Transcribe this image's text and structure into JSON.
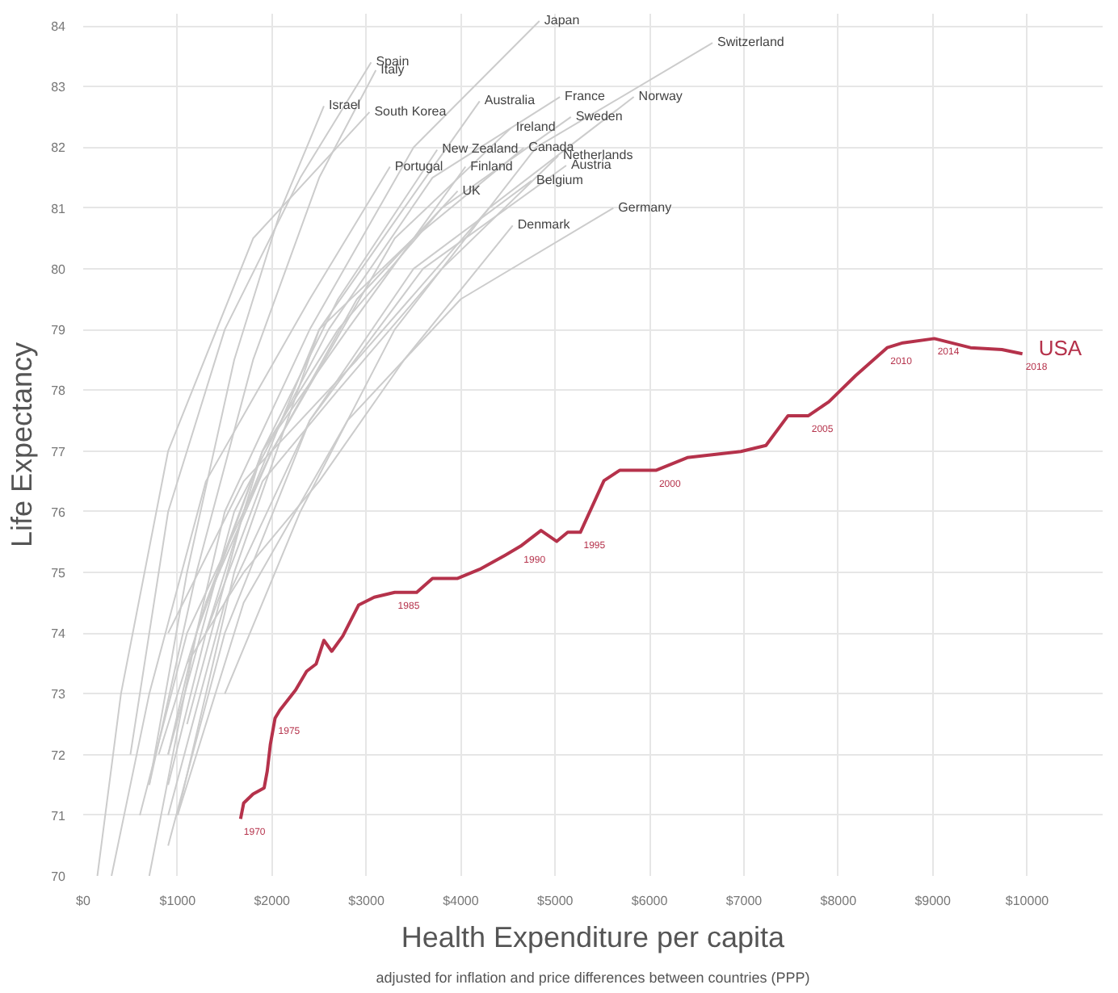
{
  "chart_data": {
    "type": "line",
    "xlabel": "Health Expenditure per capita",
    "ylabel": "Life Expectancy",
    "xlim": [
      0,
      10800
    ],
    "ylim": [
      70,
      84.2
    ],
    "xticks": [
      {
        "value": 0,
        "label": "$0"
      },
      {
        "value": 1000,
        "label": "$1000"
      },
      {
        "value": 2000,
        "label": "$2000"
      },
      {
        "value": 3000,
        "label": "$3000"
      },
      {
        "value": 4000,
        "label": "$4000"
      },
      {
        "value": 5000,
        "label": "$5000"
      },
      {
        "value": 6000,
        "label": "$6000"
      },
      {
        "value": 7000,
        "label": "$7000"
      },
      {
        "value": 8000,
        "label": "$8000"
      },
      {
        "value": 9000,
        "label": "$9000"
      },
      {
        "value": 10000,
        "label": "$10000"
      }
    ],
    "yticks": [
      70,
      71,
      72,
      73,
      74,
      75,
      76,
      77,
      78,
      79,
      80,
      81,
      82,
      83,
      84
    ],
    "grid": true,
    "marker": "none",
    "line_style": "solid",
    "series": [
      {
        "name": "Japan",
        "color": "#cccccc",
        "x": [
          900,
          1500,
          2400,
          3500,
          4833
        ],
        "values": [
          72.0,
          76.0,
          79.0,
          82.0,
          84.08
        ]
      },
      {
        "name": "Switzerland",
        "color": "#cccccc",
        "x": [
          1500,
          2300,
          3300,
          4800,
          6667
        ],
        "values": [
          73.0,
          76.0,
          79.0,
          82.0,
          83.72
        ]
      },
      {
        "name": "Spain",
        "color": "#cccccc",
        "x": [
          500,
          900,
          1500,
          2300,
          3050
        ],
        "values": [
          72.0,
          76.0,
          79.0,
          81.5,
          83.4
        ]
      },
      {
        "name": "Italy",
        "color": "#cccccc",
        "x": [
          700,
          1200,
          1800,
          2500,
          3100
        ],
        "values": [
          71.5,
          75.0,
          78.5,
          81.5,
          83.27
        ]
      },
      {
        "name": "Israel",
        "color": "#cccccc",
        "x": [
          700,
          1100,
          1600,
          2100,
          2550
        ],
        "values": [
          71.5,
          75.0,
          78.5,
          81.0,
          82.68
        ]
      },
      {
        "name": "South Korea",
        "color": "#cccccc",
        "x": [
          150,
          400,
          900,
          1800,
          3033
        ],
        "values": [
          70.0,
          73.0,
          77.0,
          80.5,
          82.58
        ]
      },
      {
        "name": "Australia",
        "color": "#cccccc",
        "x": [
          1000,
          1600,
          2500,
          3400,
          4200
        ],
        "values": [
          71.0,
          75.0,
          79.0,
          81.0,
          82.76
        ]
      },
      {
        "name": "France",
        "color": "#cccccc",
        "x": [
          900,
          1600,
          2600,
          3700,
          5050
        ],
        "values": [
          72.0,
          76.0,
          79.0,
          81.5,
          82.83
        ]
      },
      {
        "name": "Norway",
        "color": "#cccccc",
        "x": [
          900,
          1700,
          2900,
          4300,
          5833
        ],
        "values": [
          74.0,
          76.5,
          78.5,
          81.0,
          82.83
        ]
      },
      {
        "name": "Sweden",
        "color": "#cccccc",
        "x": [
          1300,
          1900,
          2700,
          3800,
          5167
        ],
        "values": [
          74.5,
          77.0,
          79.0,
          81.0,
          82.5
        ]
      },
      {
        "name": "Ireland",
        "color": "#cccccc",
        "x": [
          600,
          1100,
          2000,
          3300,
          4533
        ],
        "values": [
          71.0,
          74.0,
          77.0,
          80.5,
          82.32
        ]
      },
      {
        "name": "Canada",
        "color": "#cccccc",
        "x": [
          1100,
          1700,
          2500,
          3500,
          4667
        ],
        "values": [
          72.5,
          76.0,
          79.0,
          80.5,
          81.99
        ]
      },
      {
        "name": "Netherlands",
        "color": "#cccccc",
        "x": [
          1300,
          1900,
          2700,
          3800,
          5033
        ],
        "values": [
          74.0,
          76.5,
          78.0,
          80.0,
          81.86
        ]
      },
      {
        "name": "Austria",
        "color": "#cccccc",
        "x": [
          900,
          1500,
          2400,
          3600,
          5117
        ],
        "values": [
          70.5,
          74.0,
          77.5,
          80.0,
          81.7
        ]
      },
      {
        "name": "Belgium",
        "color": "#cccccc",
        "x": [
          900,
          1500,
          2400,
          3500,
          4750
        ],
        "values": [
          71.0,
          74.5,
          77.5,
          80.0,
          81.45
        ]
      },
      {
        "name": "New Zealand",
        "color": "#cccccc",
        "x": [
          900,
          1300,
          1900,
          2700,
          3750
        ],
        "values": [
          71.5,
          74.0,
          77.0,
          79.5,
          81.96
        ]
      },
      {
        "name": "Finland",
        "color": "#cccccc",
        "x": [
          700,
          1200,
          1900,
          2800,
          4050
        ],
        "values": [
          70.0,
          74.0,
          77.0,
          79.0,
          81.68
        ]
      },
      {
        "name": "Portugal",
        "color": "#cccccc",
        "x": [
          300,
          700,
          1300,
          2400,
          3250
        ],
        "values": [
          70.0,
          73.0,
          76.5,
          79.5,
          81.68
        ]
      },
      {
        "name": "UK",
        "color": "#cccccc",
        "x": [
          800,
          1300,
          2000,
          2900,
          3967
        ],
        "values": [
          72.0,
          74.5,
          77.0,
          79.5,
          81.28
        ]
      },
      {
        "name": "Denmark",
        "color": "#cccccc",
        "x": [
          1100,
          1700,
          2500,
          3400,
          4550
        ],
        "values": [
          73.5,
          75.0,
          76.5,
          78.5,
          80.71
        ]
      },
      {
        "name": "Germany",
        "color": "#cccccc",
        "x": [
          1000,
          1700,
          2800,
          4000,
          5617
        ],
        "values": [
          71.0,
          74.5,
          77.5,
          79.5,
          81.0
        ]
      },
      {
        "name": "USA",
        "color": "#b5324b",
        "x": [
          1667,
          1700,
          1800,
          1917,
          1950,
          1983,
          2033,
          2083,
          2250,
          2367,
          2467,
          2550,
          2633,
          2750,
          2917,
          3083,
          3300,
          3533,
          3700,
          3967,
          4200,
          4467,
          4633,
          4850,
          5017,
          5133,
          5267,
          5517,
          5683,
          6067,
          6400,
          6967,
          7233,
          7467,
          7683,
          7900,
          8183,
          8517,
          8683,
          9017,
          9400,
          9733,
          9950
        ],
        "values": [
          70.94,
          71.2,
          71.35,
          71.45,
          71.73,
          72.17,
          72.6,
          72.73,
          73.06,
          73.37,
          73.49,
          73.88,
          73.7,
          73.95,
          74.46,
          74.59,
          74.67,
          74.67,
          74.9,
          74.9,
          75.05,
          75.28,
          75.43,
          75.69,
          75.51,
          75.66,
          75.66,
          76.51,
          76.68,
          76.68,
          76.89,
          76.99,
          77.09,
          77.58,
          77.58,
          77.81,
          78.24,
          78.7,
          78.78,
          78.85,
          78.7,
          78.67,
          78.6
        ]
      }
    ],
    "annotations": [
      "adjusted for inflation and price differences between countries (PPP)",
      {
        "text": "1970",
        "x": 1667,
        "y": 70.94
      },
      {
        "text": "1975",
        "x": 2033,
        "y": 72.6
      },
      {
        "text": "1985",
        "x": 3300,
        "y": 74.67
      },
      {
        "text": "1990",
        "x": 4633,
        "y": 75.43
      },
      {
        "text": "1995",
        "x": 5267,
        "y": 75.66
      },
      {
        "text": "2000",
        "x": 6067,
        "y": 76.68
      },
      {
        "text": "2005",
        "x": 7683,
        "y": 77.58
      },
      {
        "text": "2010",
        "x": 8517,
        "y": 78.7
      },
      {
        "text": "2014",
        "x": 9017,
        "y": 78.85
      },
      {
        "text": "2018",
        "x": 9950,
        "y": 78.6
      }
    ]
  }
}
